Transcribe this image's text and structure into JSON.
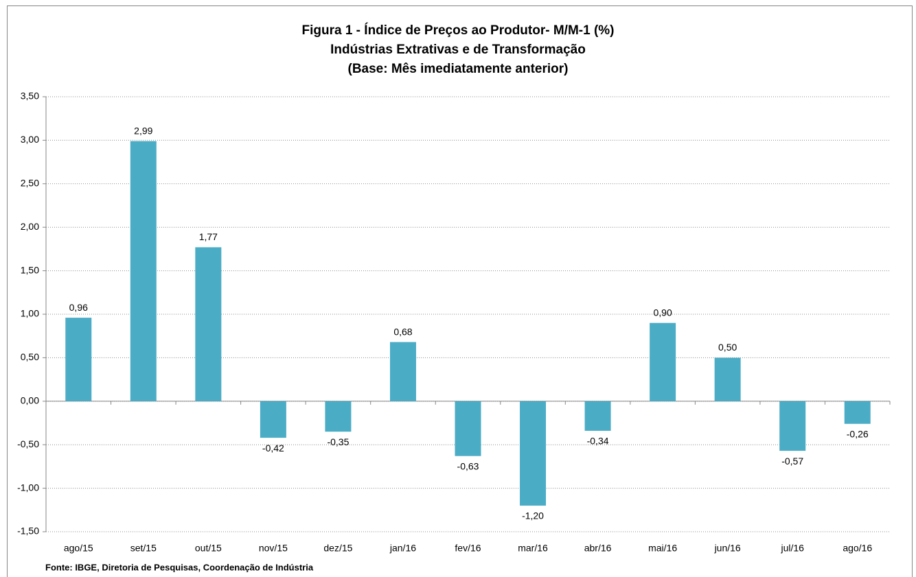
{
  "chart_data": {
    "type": "bar",
    "title": [
      "Figura 1 - Índice de Preços ao Produtor- M/M-1 (%)",
      "Indústrias Extrativas e de Transformação",
      "(Base: Mês imediatamente anterior)"
    ],
    "source": "Fonte: IBGE, Diretoria  de Pesquisas, Coordenação de Indústria",
    "categories": [
      "ago/15",
      "set/15",
      "out/15",
      "nov/15",
      "dez/15",
      "jan/16",
      "fev/16",
      "mar/16",
      "abr/16",
      "mai/16",
      "jun/16",
      "jul/16",
      "ago/16"
    ],
    "values": [
      0.96,
      2.99,
      1.77,
      -0.42,
      -0.35,
      0.68,
      -0.63,
      -1.2,
      -0.34,
      0.9,
      0.5,
      -0.57,
      -0.26
    ],
    "value_labels": [
      "0,96",
      "2,99",
      "1,77",
      "-0,42",
      "-0,35",
      "0,68",
      "-0,63",
      "-1,20",
      "-0,34",
      "0,90",
      "0,50",
      "-0,57",
      "-0,26"
    ],
    "color": "#4bacc6",
    "ylim": [
      -1.5,
      3.5
    ],
    "yticks": [
      {
        "value": -1.5,
        "label": "-1,50"
      },
      {
        "value": -1.0,
        "label": "-1,00"
      },
      {
        "value": -0.5,
        "label": "-0,50"
      },
      {
        "value": 0,
        "label": "0,00"
      },
      {
        "value": 0.5,
        "label": "0,50"
      },
      {
        "value": 1.0,
        "label": "1,00"
      },
      {
        "value": 1.5,
        "label": "1,50"
      },
      {
        "value": 2.0,
        "label": "2,00"
      },
      {
        "value": 2.5,
        "label": "2,50"
      },
      {
        "value": 3.0,
        "label": "3,00"
      },
      {
        "value": 3.5,
        "label": "3,50"
      }
    ],
    "grid": true
  }
}
